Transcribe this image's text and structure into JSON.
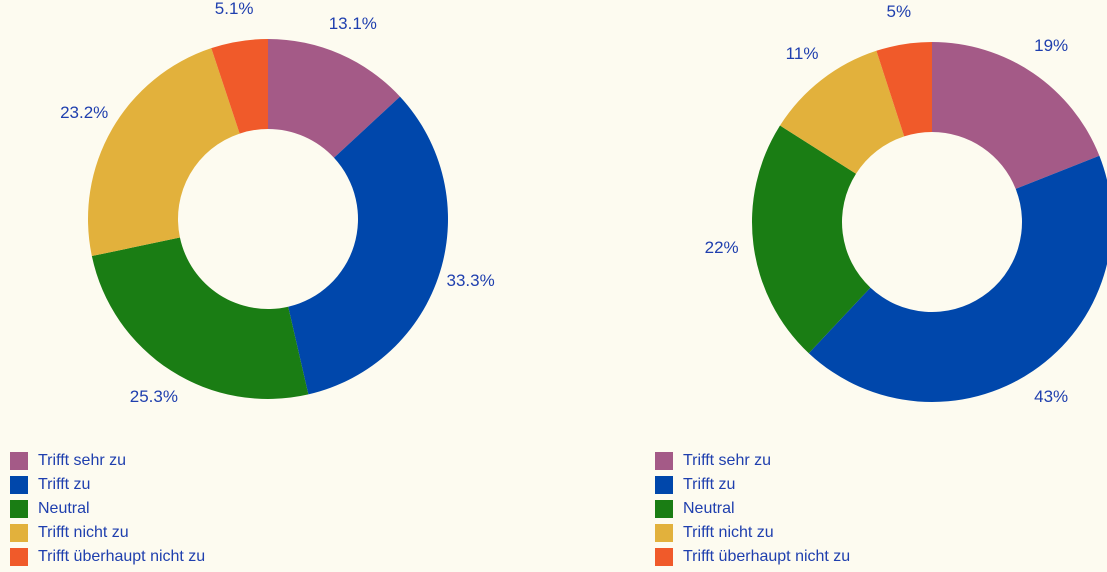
{
  "chart_data": [
    {
      "type": "donut",
      "categories": [
        "Trifft sehr zu",
        "Trifft zu",
        "Neutral",
        "Trifft nicht zu",
        "Trifft überhaupt nicht zu"
      ],
      "values": [
        13.1,
        33.3,
        25.3,
        23.2,
        5.1
      ],
      "value_labels": [
        "13.1%",
        "33.3%",
        "25.3%",
        "23.2%",
        "5.1%"
      ],
      "colors": [
        "#a45a87",
        "#0047ab",
        "#1a7d14",
        "#e2b13c",
        "#f05a2a"
      ]
    },
    {
      "type": "donut",
      "categories": [
        "Trifft sehr zu",
        "Trifft zu",
        "Neutral",
        "Trifft nicht zu",
        "Trifft überhaupt nicht zu"
      ],
      "values": [
        19,
        43,
        22,
        11,
        5
      ],
      "value_labels": [
        "19%",
        "43%",
        "22%",
        "11%",
        "5%"
      ],
      "colors": [
        "#a45a87",
        "#0047ab",
        "#1a7d14",
        "#e2b13c",
        "#f05a2a"
      ]
    }
  ]
}
